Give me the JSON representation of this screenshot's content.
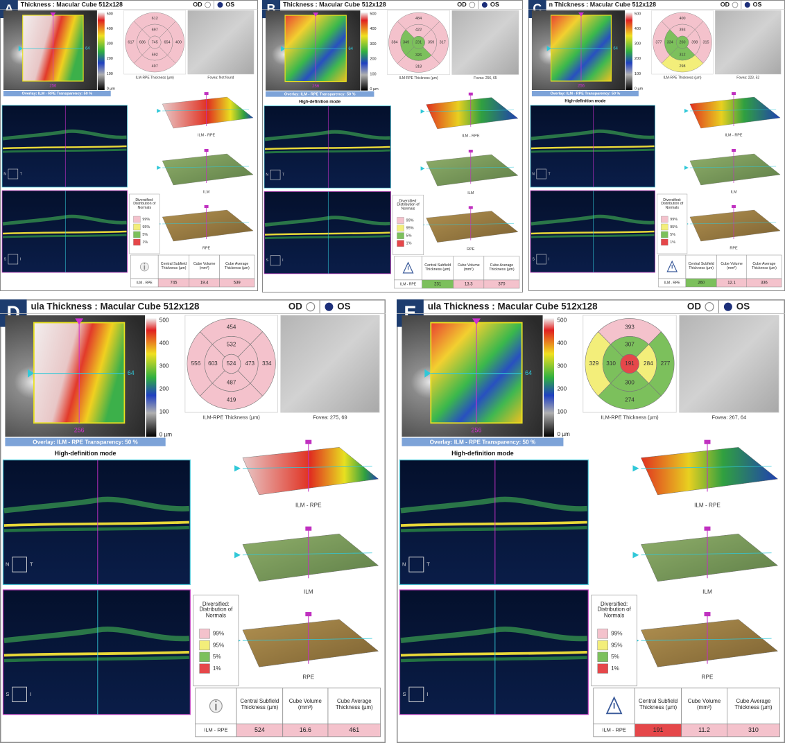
{
  "common": {
    "od": "OD",
    "os": "OS",
    "colorbar": [
      500,
      400,
      300,
      200,
      100,
      "0 µm"
    ],
    "overlay": "Overlay: ILM - RPE  Transparency: 50 %",
    "scan_x": 64,
    "scan_y": 256,
    "map_label": "ILM-RPE Thickness (µm)",
    "orient": [
      "N",
      "T",
      "S",
      "I"
    ],
    "surfaces": [
      "ILM - RPE",
      "ILM",
      "RPE"
    ],
    "legend_title": "Diversified: Distribution of Normals",
    "legend": [
      "99%",
      "95%",
      "5%",
      "1%"
    ],
    "legend_colors": [
      "#f4c2cc",
      "#f3ee7a",
      "#7cc05c",
      "#e5474a"
    ],
    "table_headers": [
      "Central Subfield Thickness (µm)",
      "Cube Volume (mm³)",
      "Cube Average Thickness (µm)"
    ],
    "row_label": "ILM - RPE"
  },
  "panels": [
    {
      "letter": "A",
      "title": "Thickness : Macular Cube 512x128",
      "fovea": "Fovea: Not found",
      "map": {
        "center": 745,
        "inner": [
          697,
          654,
          592,
          686
        ],
        "outer": [
          612,
          400,
          497,
          617
        ],
        "center_color": "#f4c2cc",
        "inner_colors": [
          "#f4c2cc",
          "#f4c2cc",
          "#f4c2cc",
          "#f4c2cc"
        ],
        "outer_colors": [
          "#f4c2cc",
          "#f4c2cc",
          "#f4c2cc",
          "#f4c2cc"
        ]
      },
      "table": [
        745,
        19.4,
        539
      ],
      "table_colors": [
        "#f4c2cc",
        "#f4c2cc",
        "#f4c2cc"
      ]
    },
    {
      "letter": "B",
      "title": "Thickness : Macular Cube 512x128",
      "hd_mode": "High-definition mode",
      "fovea": "Fovea: 256, 65",
      "map": {
        "center": 231,
        "inner": [
          422,
          359,
          326,
          349
        ],
        "outer": [
          484,
          317,
          318,
          384
        ],
        "center_color": "#7cc05c",
        "inner_colors": [
          "#f4c2cc",
          "#f4c2cc",
          "#7cc05c",
          "#7cc05c"
        ],
        "outer_colors": [
          "#f4c2cc",
          "#f4c2cc",
          "#f4c2cc",
          "#f4c2cc"
        ]
      },
      "table": [
        231,
        13.3,
        370
      ],
      "table_colors": [
        "#7cc05c",
        "#f4c2cc",
        "#f4c2cc"
      ]
    },
    {
      "letter": "C",
      "title": "n Thickness : Macular Cube 512x128",
      "hd_mode": "High-definition mode",
      "fovea": "Fovea: 223, 52",
      "map": {
        "center": 260,
        "inner": [
          393,
          398,
          312,
          334
        ],
        "outer": [
          400,
          315,
          298,
          377
        ],
        "center_color": "#7cc05c",
        "inner_colors": [
          "#f4c2cc",
          "#f4c2cc",
          "#7cc05c",
          "#7cc05c"
        ],
        "outer_colors": [
          "#f4c2cc",
          "#f4c2cc",
          "#f3ee7a",
          "#f4c2cc"
        ]
      },
      "table": [
        260,
        12.1,
        336
      ],
      "table_colors": [
        "#7cc05c",
        "#f4c2cc",
        "#f4c2cc"
      ]
    },
    {
      "letter": "D",
      "title": "ula Thickness : Macular Cube 512x128",
      "hd_mode": "High-definition mode",
      "fovea": "Fovea: 275, 69",
      "map": {
        "center": 524,
        "inner": [
          532,
          473,
          487,
          603
        ],
        "outer": [
          454,
          334,
          419,
          556
        ],
        "center_color": "#f4c2cc",
        "inner_colors": [
          "#f4c2cc",
          "#f4c2cc",
          "#f4c2cc",
          "#f4c2cc"
        ],
        "outer_colors": [
          "#f4c2cc",
          "#f4c2cc",
          "#f4c2cc",
          "#f4c2cc"
        ]
      },
      "table": [
        524,
        16.6,
        461
      ],
      "table_colors": [
        "#f4c2cc",
        "#f4c2cc",
        "#f4c2cc"
      ]
    },
    {
      "letter": "E",
      "title": "ula Thickness : Macular Cube 512x128",
      "hd_mode": "High-definition mode",
      "fovea": "Fovea: 267, 64",
      "map": {
        "center": 191,
        "inner": [
          307,
          284,
          300,
          310
        ],
        "outer": [
          393,
          277,
          274,
          329
        ],
        "center_color": "#e5474a",
        "inner_colors": [
          "#7cc05c",
          "#f3ee7a",
          "#7cc05c",
          "#7cc05c"
        ],
        "outer_colors": [
          "#f4c2cc",
          "#7cc05c",
          "#7cc05c",
          "#f3ee7a"
        ]
      },
      "table": [
        191,
        11.2,
        310
      ],
      "table_colors": [
        "#e5474a",
        "#f4c2cc",
        "#f4c2cc"
      ]
    }
  ]
}
